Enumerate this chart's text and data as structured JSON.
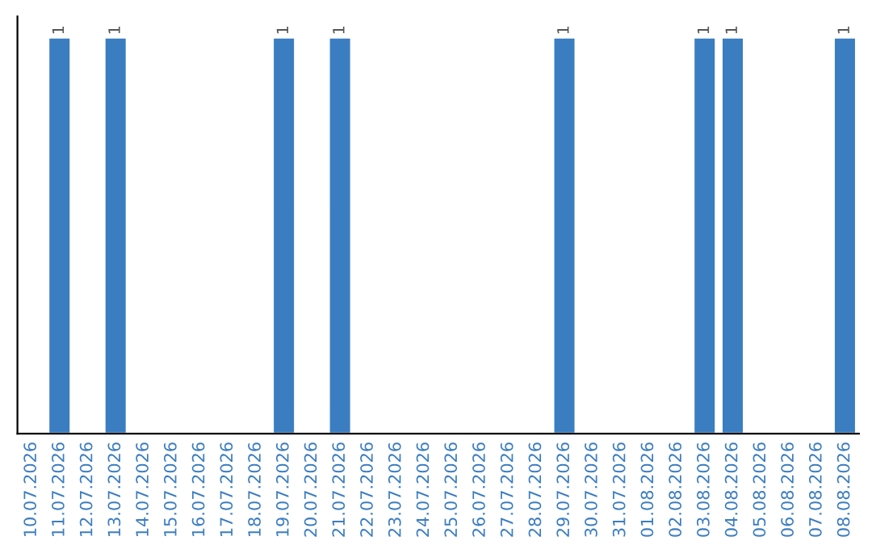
{
  "chart_data": {
    "type": "bar",
    "color": "#3b7dc1",
    "categories": [
      "10.07.2026",
      "11.07.2026",
      "12.07.2026",
      "13.07.2026",
      "14.07.2026",
      "15.07.2026",
      "16.07.2026",
      "17.07.2026",
      "18.07.2026",
      "19.07.2026",
      "20.07.2026",
      "21.07.2026",
      "22.07.2026",
      "23.07.2026",
      "24.07.2026",
      "25.07.2026",
      "26.07.2026",
      "27.07.2026",
      "28.07.2026",
      "29.07.2026",
      "30.07.2026",
      "31.07.2026",
      "01.08.2026",
      "02.08.2026",
      "03.08.2026",
      "04.08.2026",
      "05.08.2026",
      "06.08.2026",
      "07.08.2026",
      "08.08.2026"
    ],
    "values": [
      0,
      1,
      0,
      1,
      0,
      0,
      0,
      0,
      0,
      1,
      0,
      1,
      0,
      0,
      0,
      0,
      0,
      0,
      0,
      1,
      0,
      0,
      0,
      0,
      1,
      1,
      0,
      0,
      0,
      1
    ],
    "value_labels": [
      null,
      "1",
      null,
      "1",
      null,
      null,
      null,
      null,
      null,
      "1",
      null,
      "1",
      null,
      null,
      null,
      null,
      null,
      null,
      null,
      "1",
      null,
      null,
      null,
      null,
      "1",
      "1",
      null,
      null,
      null,
      "1"
    ],
    "tick_labels": "x",
    "grid": false,
    "legend": false
  }
}
